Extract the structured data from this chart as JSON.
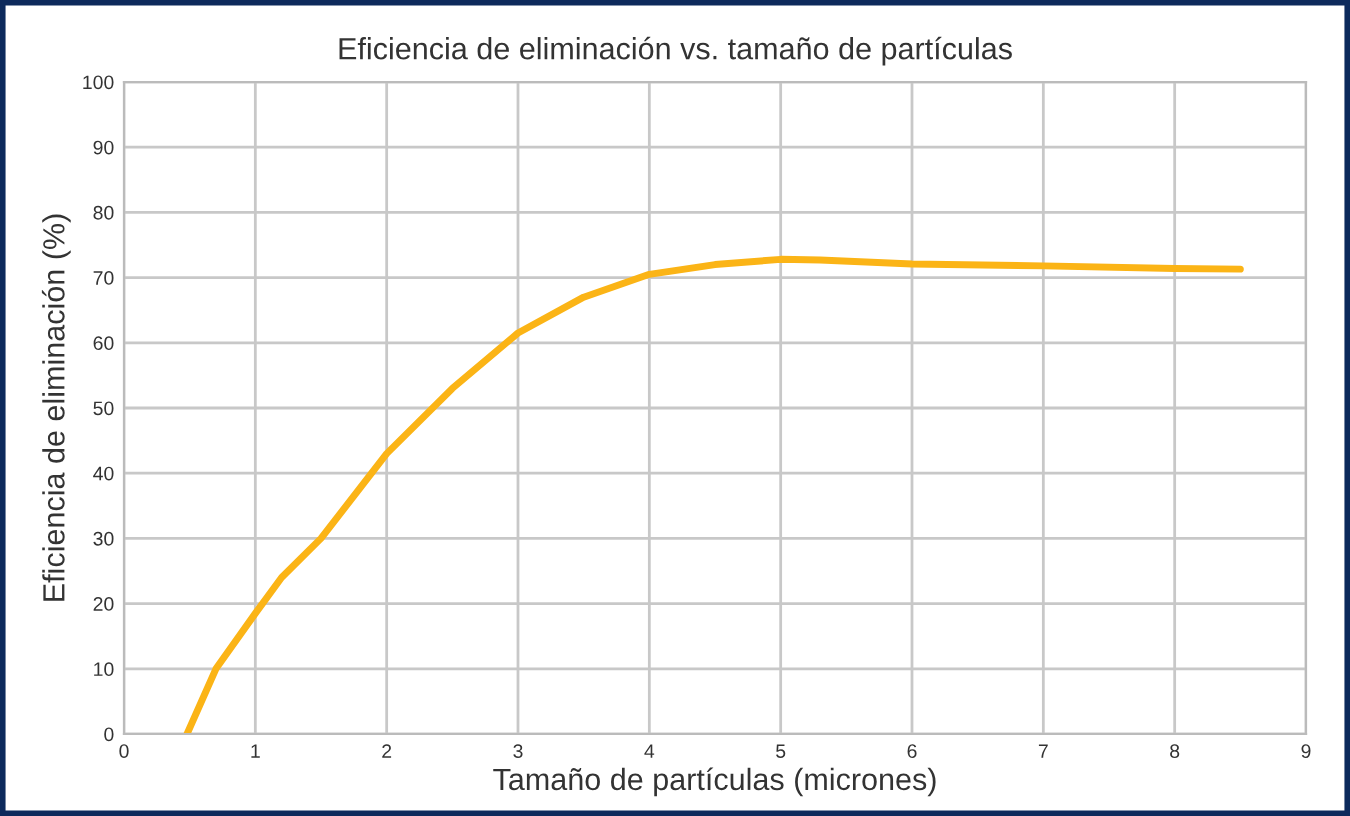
{
  "chart_data": {
    "type": "line",
    "title": "Eficiencia de eliminación vs. tamaño de partículas",
    "xlabel": "Tamaño de partículas (micrones)",
    "ylabel": "Eficiencia de eliminación (%)",
    "series": [
      {
        "color": "#fbb416",
        "x": [
          0.48,
          0.7,
          1.0,
          1.2,
          1.5,
          2.0,
          2.5,
          3.0,
          3.5,
          4.0,
          4.5,
          5.0,
          5.3,
          6.0,
          7.0,
          8.0,
          8.5
        ],
        "values": [
          0,
          10,
          18.5,
          24,
          30,
          43,
          53,
          61.5,
          67,
          70.5,
          72,
          72.8,
          72.7,
          72.1,
          71.8,
          71.4,
          71.3
        ]
      }
    ],
    "xlim": [
      0,
      9
    ],
    "xticks": [
      0,
      1,
      2,
      3,
      4,
      5,
      6,
      7,
      8,
      9
    ],
    "ylim": [
      0,
      100
    ],
    "yticks": [
      0,
      10,
      20,
      30,
      40,
      50,
      60,
      70,
      80,
      90,
      100
    ],
    "grid": true,
    "marker": "none",
    "line_style": "solid",
    "legend": false
  }
}
